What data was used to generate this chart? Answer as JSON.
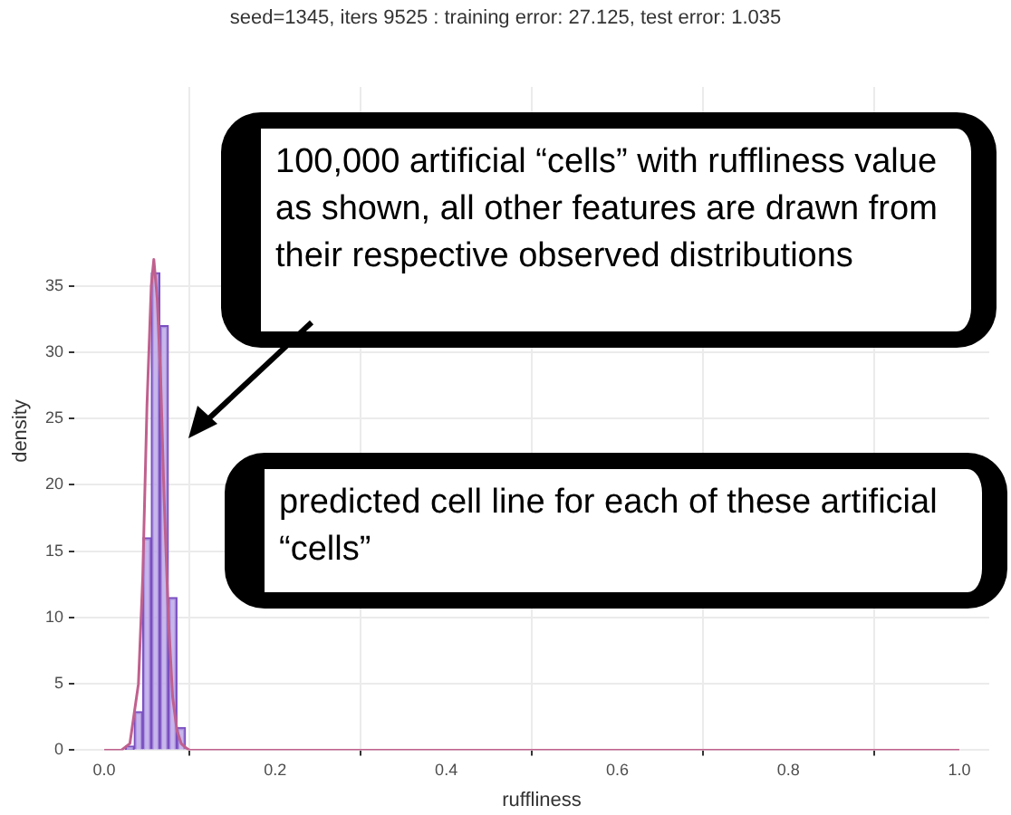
{
  "chart_data": {
    "type": "histogram",
    "title": "seed=1345, iters 9525 : training error: 27.125, test error: 1.035",
    "xlabel": "ruffliness",
    "ylabel": "density",
    "bins": [
      0.025,
      0.035,
      0.045,
      0.055,
      0.065,
      0.075,
      0.085,
      0.095
    ],
    "values": [
      0.3,
      2.9,
      16,
      36,
      32,
      11.5,
      1.7
    ],
    "color": "#b9a4e6",
    "series": [
      {
        "type": "line",
        "color": "#c0608e",
        "x": [
          0,
          0.02,
          0.03,
          0.04,
          0.045,
          0.05,
          0.055,
          0.058,
          0.062,
          0.066,
          0.07,
          0.075,
          0.08,
          0.085,
          0.09,
          0.095,
          0.1,
          1
        ],
        "values": [
          0,
          0,
          0.5,
          5,
          13,
          26,
          35,
          37,
          34,
          28,
          19,
          10,
          4,
          1.5,
          0.5,
          0.2,
          0,
          0
        ]
      }
    ],
    "xlim": [
      -0.035,
      1.035
    ],
    "ylim": [
      0,
      50
    ],
    "xticks": [
      {
        "value": 0,
        "label": "0.0"
      },
      0.2,
      0.4,
      0.6,
      0.8,
      {
        "value": 1,
        "label": "1.0"
      }
    ],
    "yticks": [
      0,
      5,
      10,
      15,
      20,
      25,
      30,
      35
    ],
    "grid": true,
    "annotations": [
      "100,000 artificial “cells” with ruffliness value as shown, all other features are drawn from their respective observed distributions",
      "predicted cell line for each of these artificial “cells”"
    ]
  }
}
